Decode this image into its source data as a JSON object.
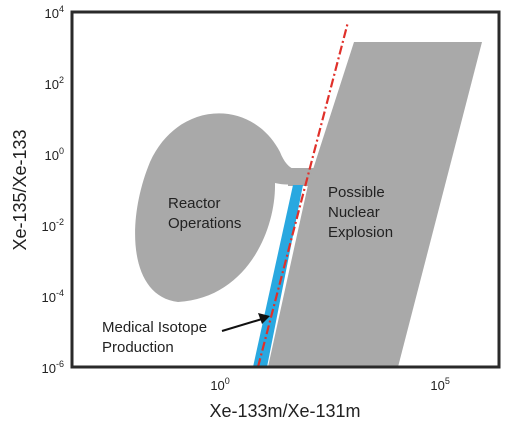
{
  "chart_data": {
    "type": "area",
    "xlabel": "Xe-133m/Xe-131m",
    "ylabel": "Xe-135/Xe-133",
    "xscale": "log",
    "yscale": "log",
    "x_log_range": [
      -3.5,
      6.2
    ],
    "y_log_range": [
      -6,
      4
    ],
    "x_ticks": [
      {
        "base": "10",
        "exp": "0",
        "log": 0
      },
      {
        "base": "10",
        "exp": "5",
        "log": 5
      }
    ],
    "y_ticks": [
      {
        "base": "10",
        "exp": "4",
        "log": 4
      },
      {
        "base": "10",
        "exp": "2",
        "log": 2
      },
      {
        "base": "10",
        "exp": "0",
        "log": 0
      },
      {
        "base": "10",
        "exp": "-2",
        "log": -2
      },
      {
        "base": "10",
        "exp": "-4",
        "log": -4
      },
      {
        "base": "10",
        "exp": "-6",
        "log": -6
      }
    ],
    "regions": [
      {
        "label_lines": [
          "Reactor",
          "Operations"
        ],
        "color": "#a9a9a9"
      },
      {
        "label_lines": [
          "Possible",
          "Nuclear",
          "Explosion"
        ],
        "color": "#a9a9a9"
      },
      {
        "label_lines": [
          "Medical Isotope",
          "Production"
        ],
        "color": "#29a8e0"
      }
    ],
    "boundary_line": {
      "style": "dash-dot",
      "color": "#e0302a"
    },
    "grid": false
  }
}
